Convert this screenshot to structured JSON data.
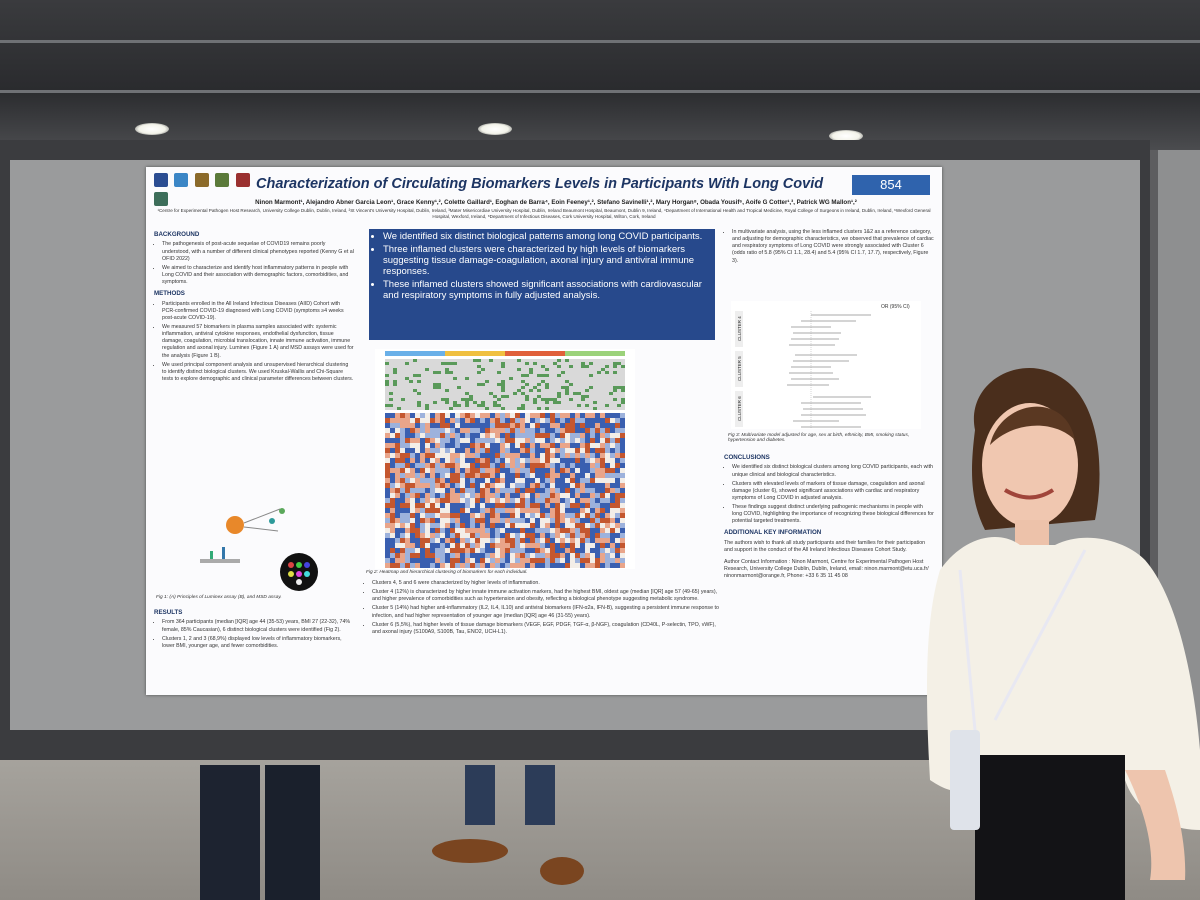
{
  "poster": {
    "number": "854",
    "title": "Characterization of Circulating Biomarkers Levels in Participants With Long Covid",
    "authors": "Ninon Marmont¹, Alejandro Abner Garcia Leon¹, Grace Kenny¹,², Colette Gaillard¹, Eoghan de Barra⁴, Eoin Feeney¹,², Stefano Savinelli¹,², Mary Horgan⁸, Obada Yousif⁶, Aoife G Cotter¹,³, Patrick WG Mallon¹,²",
    "affiliations": "¹Centre for Experimental Pathogen Host Research, University College Dublin, Dublin, Ireland, ²St Vincent's University Hospital, Dublin, Ireland, ³Mater Misericordiae University Hospital, Dublin, Ireland Beaumont Hospital, Beaumont, Dublin 9, Ireland, ⁴Department of International Health and Tropical Medicine, Royal College of Surgeons in Ireland, Dublin, Ireland, ⁶Wexford General Hospital, Wexford, Ireland, ⁸Department of Infectious Diseases, Cork University Hospital, Wilton, Cork, Ireland",
    "background_title": "BACKGROUND",
    "background": [
      "The pathogenesis of post-acute sequelae of COVID19 remains poorly understood, with a number of different clinical phenotypes reported (Kenny G et al OFID 2022)",
      "We aimed to characterize and identify host inflammatory patterns in people with Long COVID and their association with demographic factors, comorbidities, and symptoms."
    ],
    "methods_title": "METHODS",
    "methods": [
      "Participants enrolled in the All Ireland Infectious Diseases (AIID) Cohort with PCR-confirmed COVID-19 diagnosed with Long COVID (symptoms ≥4 weeks post-acute COVID-19).",
      "We measured 57 biomarkers in plasma samples associated with: systemic inflammation, antiviral cytokine responses, endothelial dysfunction, tissue damage, coagulation, microbial translocation, innate immune activation, immune regulation and axonal injury. Luminex (Figure 1 A) and MSD assays were used for the analysis (Figure 1 B).",
      "We used principal component analysis and unsupervised hierarchical clustering to identify distinct biological clusters. We used Kruskal-Wallis and Chi-Square tests to explore demographic and clinical parameter differences between clusters."
    ],
    "fig1_caption": "Fig 1: (A) Principles of Luminex assay (B), and MSD assay.",
    "results_title": "RESULTS",
    "results": [
      "From 364 participants (median [IQR] age 44 (35-53) years, BMI 27 (22-32), 74% female, 85% Caucasian), 6 distinct biological clusters were identified (Fig 2).",
      "Clusters 1, 2 and 3 (68,9%) displayed low levels of inflammatory biomarkers, lower BMI, younger age, and fewer comorbidities."
    ],
    "highlights": [
      "We identified six distinct biological patterns among long COVID participants.",
      "Three inflamed clusters were characterized by high levels of biomarkers suggesting tissue damage-coagulation, axonal injury and antiviral immune responses.",
      "These inflamed clusters showed significant associations with cardiovascular and respiratory symptoms in fully adjusted analysis."
    ],
    "fig2_caption": "Fig 2: Heatmap and hierarchical clustering of biomarkers for each individual.",
    "clusters": [
      "Clusters 4, 5 and 6 were characterized by higher levels of inflammation.",
      "Cluster 4 (12%) is characterized by higher innate immune activation markers, had the highest BMI, oldest age (median [IQR] age 57 (49-65) years), and higher prevalence of comorbidities such as hypertension and obesity, reflecting a biological phenotype suggesting metabolic syndrome.",
      "Cluster 5 (14%) had higher anti-inflammatory (IL2, IL4, IL10) and antiviral biomarkers (IFN-α2a, IFN-B), suggesting a persistent immune response to infection, and had higher representation of younger age (median [IQR] age 46 (31-55) years).",
      "Cluster 6 (5,5%), had higher levels of tissue damage biomarkers (VEGF, EGF, PDGF, TGF-α, β-NGF), coagulation (CD40L, P-selectin, TPO, vWF), and axonal injury (S100A9, S100B, Tau, ENO2, UCH-L1)."
    ],
    "multivariate": "In multivariate analysis, using the less inflamed clusters 1&2 as a reference category, and adjusting for demographic characteristics, we observed that prevalence of cardiac and respiratory symptoms of Long COVID were strongly associated with Cluster 6 (odds ratio of 5.8 (95% CI 1.1, 28.4) and 5.4 (95% CI 1.7, 17.7), respectively, Figure 3).",
    "fig3_caption": "Fig 3: Multivariate model adjusted for age, sex at birth, ethnicity, BMI, smoking status, hypertension and diabetes.",
    "conclusions_title": "CONCLUSIONS",
    "conclusions": [
      "We identified six distinct biological clusters among long COVID participants, each with unique clinical and biological characteristics.",
      "Clusters with elevated levels of markers of tissue damage, coagulation and axonal damage (cluster 6), showed significant associations with cardiac and respiratory symptoms of Long COVID in adjusted analysis.",
      "These findings suggest distinct underlying pathogenic mechanisms in people with long COVID, highlighting the importance of recognizing these biological differences for potential targeted treatments."
    ],
    "additional_title": "ADDITIONAL KEY INFORMATION",
    "additional": "The authors wish to thank all study participants and their families for their participation and support in the conduct of the All Ireland Infectious Diseases Cohort Study.",
    "contact": "Author Contact Information : Ninon Marmont, Centre for Experimental Pathogen Host Research, University College Dublin, Dublin, Ireland, email: ninon.marmont@etu.uca.fr/ ninonmarmont@orange.fr, Phone: +33 6 35 11 45 08",
    "forest_labels": [
      "CLUSTER 4",
      "CLUSTER 5",
      "CLUSTER 6"
    ],
    "forest_header": "OR (95% CI)"
  },
  "colors": {
    "title": "#1d3563",
    "highlight_box": "#27498c",
    "poster_number_bg": "#2f63ad"
  }
}
